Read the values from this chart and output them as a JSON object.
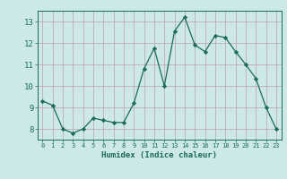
{
  "x": [
    0,
    1,
    2,
    3,
    4,
    5,
    6,
    7,
    8,
    9,
    10,
    11,
    12,
    13,
    14,
    15,
    16,
    17,
    18,
    19,
    20,
    21,
    22,
    23
  ],
  "y": [
    9.3,
    9.1,
    8.0,
    7.8,
    8.0,
    8.5,
    8.4,
    8.3,
    8.3,
    9.2,
    10.8,
    11.75,
    10.0,
    12.55,
    13.2,
    11.9,
    11.6,
    12.35,
    12.25,
    11.6,
    11.0,
    10.35,
    9.0,
    8.0
  ],
  "line_color": "#1a6b5a",
  "marker": "D",
  "marker_size": 2.2,
  "bg_color": "#cce8e8",
  "grid_color": "#c0a0a8",
  "xlabel": "Humidex (Indice chaleur)",
  "xlabel_color": "#1a6b5a",
  "tick_color": "#1a6b5a",
  "ylim": [
    7.5,
    13.5
  ],
  "yticks": [
    8,
    9,
    10,
    11,
    12,
    13
  ],
  "xlim": [
    -0.5,
    23.5
  ],
  "xticks": [
    0,
    1,
    2,
    3,
    4,
    5,
    6,
    7,
    8,
    9,
    10,
    11,
    12,
    13,
    14,
    15,
    16,
    17,
    18,
    19,
    20,
    21,
    22,
    23
  ]
}
